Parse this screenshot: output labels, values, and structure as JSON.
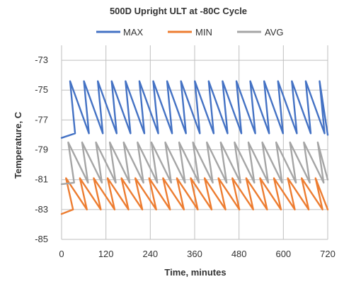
{
  "chart_data": {
    "type": "line",
    "title": "500D Upright ULT at -80C Cycle",
    "xlabel": "Time, minutes",
    "ylabel": "Temperature, C",
    "xlim": [
      0,
      720
    ],
    "ylim": [
      -85,
      -72
    ],
    "x_ticks": [
      "0",
      "120",
      "240",
      "360",
      "480",
      "600",
      "720"
    ],
    "y_ticks": [
      "-73",
      "-75",
      "-77",
      "-79",
      "-81",
      "-83",
      "-85"
    ],
    "grid": true,
    "legend_position": "top",
    "cycle_period_minutes": 37.5,
    "series": [
      {
        "name": "MAX",
        "color": "#4472c4",
        "x": [
          0,
          23,
          60.5,
          98,
          135.5,
          173,
          210.5,
          248,
          285.5,
          323,
          360.5,
          398,
          435.5,
          473,
          510.5,
          548,
          585.5,
          623,
          660.5,
          698,
          720
        ],
        "y": [
          -78.2,
          -74.4,
          -74.4,
          -74.4,
          -74.4,
          -74.4,
          -74.4,
          -74.4,
          -74.4,
          -74.4,
          -74.4,
          -74.4,
          -74.4,
          -74.4,
          -74.4,
          -74.4,
          -74.4,
          -74.4,
          -74.4,
          -74.4,
          -78.0
        ],
        "minima_x": [
          36.5,
          74,
          111.5,
          149,
          186.5,
          224,
          261.5,
          299,
          336.5,
          374,
          411.5,
          449,
          486.5,
          524,
          561.5,
          599,
          636.5,
          674,
          711.5
        ],
        "minima_y": -77.9
      },
      {
        "name": "MIN",
        "color": "#ed7d31",
        "x": [
          0,
          12,
          49.5,
          87,
          124.5,
          162,
          199.5,
          237,
          274.5,
          312,
          349.5,
          387,
          424.5,
          462,
          499.5,
          537,
          574.5,
          612,
          649.5,
          687,
          720
        ],
        "y": [
          -83.3,
          -80.9,
          -80.9,
          -80.9,
          -80.9,
          -80.9,
          -80.9,
          -80.9,
          -80.9,
          -80.9,
          -80.9,
          -80.9,
          -80.9,
          -80.9,
          -80.9,
          -80.9,
          -80.9,
          -80.9,
          -80.9,
          -80.9,
          -83.0
        ],
        "minima_x": [
          31,
          68.5,
          106,
          143.5,
          181,
          218.5,
          256,
          293.5,
          331,
          368.5,
          406,
          443.5,
          481,
          518.5,
          556,
          593.5,
          631,
          668.5,
          706
        ],
        "minima_y": -83.0
      },
      {
        "name": "AVG",
        "color": "#a5a5a5",
        "x": [
          0,
          18,
          55.5,
          93,
          130.5,
          168,
          205.5,
          243,
          280.5,
          318,
          355.5,
          393,
          430.5,
          468,
          505.5,
          543,
          580.5,
          618,
          655.5,
          693,
          720
        ],
        "y": [
          -81.3,
          -78.5,
          -78.5,
          -78.5,
          -78.5,
          -78.5,
          -78.5,
          -78.5,
          -78.5,
          -78.5,
          -78.5,
          -78.5,
          -78.5,
          -78.5,
          -78.5,
          -78.5,
          -78.5,
          -78.5,
          -78.5,
          -78.5,
          -81.0
        ],
        "minima_x": [
          34,
          71.5,
          109,
          146.5,
          184,
          221.5,
          259,
          296.5,
          334,
          371.5,
          409,
          446.5,
          484,
          521.5,
          559,
          596.5,
          634,
          671.5,
          709
        ],
        "minima_y": -81.2
      }
    ]
  }
}
